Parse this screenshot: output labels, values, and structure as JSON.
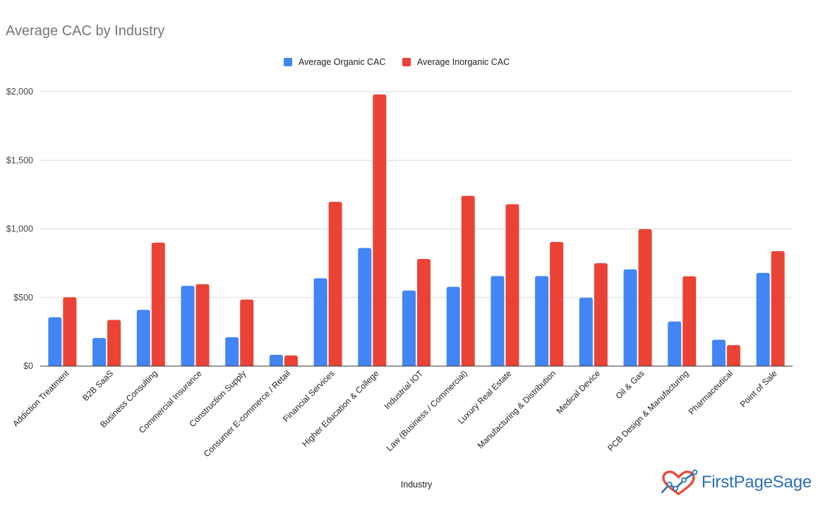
{
  "chart_data": {
    "type": "bar",
    "title": "Average CAC by Industry",
    "xlabel": "Industry",
    "ylabel": "",
    "ylim": [
      0,
      2000
    ],
    "yticks": [
      0,
      500,
      1000,
      1500,
      2000
    ],
    "ytick_labels": [
      "$0",
      "$500",
      "$1,000",
      "$1,500",
      "$2,000"
    ],
    "grid": true,
    "legend_position": "top-center",
    "categories": [
      "Addiction Treatment",
      "B2B SaaS",
      "Business Consulting",
      "Commercial Insurance",
      "Construction Supply",
      "Consumer E-commerce / Retail",
      "Financial Services",
      "Higher Education & College",
      "Industrial IOT",
      "Law (Business / Commercial)",
      "Luxury Real Estate",
      "Manufacturing & Distribution",
      "Medical Device",
      "Oil & Gas",
      "PCB Design & Manufacturing",
      "Pharmaceutical",
      "Point of Sale"
    ],
    "series": [
      {
        "name": "Average Organic CAC",
        "color": "#4285f4",
        "values": [
          356,
          205,
          410,
          585,
          210,
          82,
          640,
          861,
          551,
          578,
          656,
          656,
          498,
          705,
          325,
          192,
          679
        ]
      },
      {
        "name": "Average Inorganic CAC",
        "color": "#ea4335",
        "values": [
          502,
          337,
          900,
          597,
          485,
          78,
          1197,
          1980,
          781,
          1241,
          1180,
          905,
          750,
          998,
          655,
          153,
          838
        ]
      }
    ]
  },
  "logo": {
    "text": "FirstPageSage",
    "icon": "heart-chart-icon",
    "color": "#2c6fb8",
    "accent": "#e74c3c"
  }
}
